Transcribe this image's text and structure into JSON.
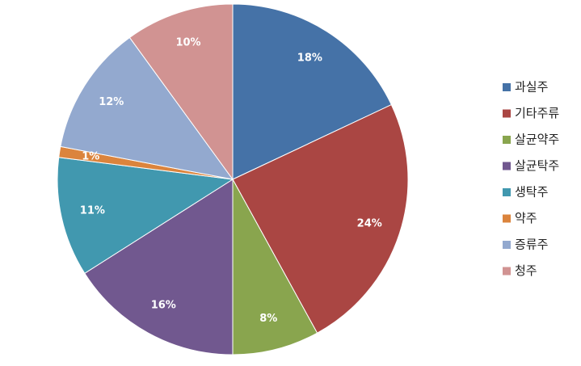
{
  "chart_data": {
    "type": "pie",
    "categories": [
      "과실주",
      "기타주류",
      "살균약주",
      "살균탁주",
      "생탁주",
      "약주",
      "증류주",
      "청주"
    ],
    "values": [
      18,
      24,
      8,
      16,
      11,
      1,
      12,
      10
    ],
    "value_labels": [
      "18%",
      "24%",
      "8%",
      "16%",
      "11%",
      "1%",
      "12%",
      "10%"
    ],
    "colors": [
      "#4572a7",
      "#aa4643",
      "#89a54e",
      "#71588f",
      "#4198af",
      "#db843d",
      "#93a9cf",
      "#d19392"
    ],
    "legend": "right"
  }
}
